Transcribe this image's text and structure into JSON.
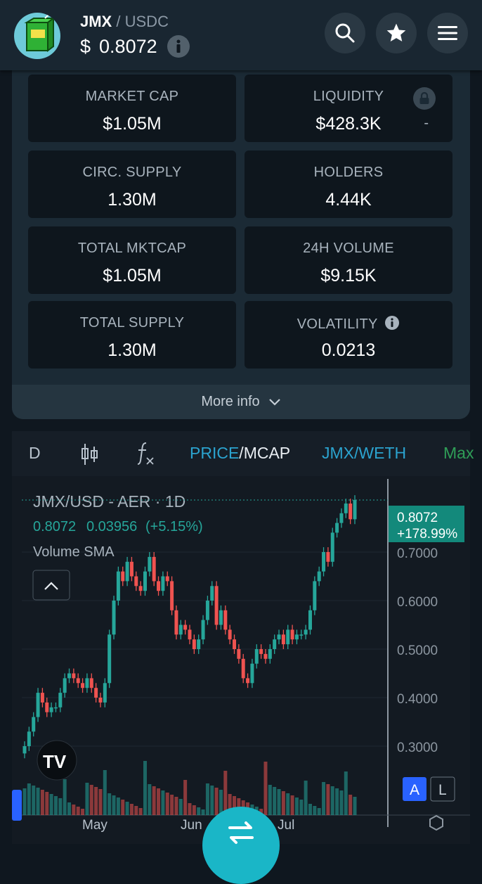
{
  "header": {
    "logo_icon": "juice-box-icon",
    "base": "JMX",
    "separator": "/",
    "quote": "USDC",
    "currency_symbol": "$",
    "price": "0.8072"
  },
  "stats": [
    {
      "label": "MARKET CAP",
      "value": "$1.05M"
    },
    {
      "label": "LIQUIDITY",
      "value": "$428.3K",
      "extra": "-"
    },
    {
      "label": "CIRC. SUPPLY",
      "value": "1.30M"
    },
    {
      "label": "HOLDERS",
      "value": "4.44K"
    },
    {
      "label": "TOTAL MKTCAP",
      "value": "$1.05M"
    },
    {
      "label": "24H VOLUME",
      "value": "$9.15K"
    },
    {
      "label": "TOTAL SUPPLY",
      "value": "1.30M"
    },
    {
      "label": "VOLATILITY",
      "value": "0.0213"
    }
  ],
  "more_info": "More info",
  "toolbar": {
    "interval": "D",
    "price_label": "PRICE",
    "slash": "/",
    "mcap_label": "MCAP",
    "pair_label": "JMX/WETH",
    "max_label": "Max"
  },
  "chart_data": {
    "type": "candlestick",
    "title": "JMX/USD - AER · 1D",
    "ohlc_legend": {
      "price": "0.8072",
      "change": "0.03956",
      "pct": "(+5.15%)"
    },
    "indicator": "Volume SMA",
    "last_price": "0.8072",
    "last_change": "+178.99%",
    "y_ticks": [
      "0.7000",
      "0.6000",
      "0.5000",
      "0.4000",
      "0.3000"
    ],
    "y_values": [
      0.7,
      0.6,
      0.5,
      0.4,
      0.3
    ],
    "x_ticks": [
      "May",
      "Jun",
      "Jul"
    ],
    "scale_buttons": [
      "A",
      "L"
    ],
    "closes": [
      0.3,
      0.33,
      0.36,
      0.41,
      0.39,
      0.37,
      0.38,
      0.38,
      0.41,
      0.44,
      0.45,
      0.44,
      0.43,
      0.42,
      0.44,
      0.42,
      0.4,
      0.39,
      0.43,
      0.53,
      0.6,
      0.66,
      0.64,
      0.68,
      0.65,
      0.63,
      0.62,
      0.66,
      0.69,
      0.64,
      0.62,
      0.65,
      0.64,
      0.58,
      0.53,
      0.55,
      0.54,
      0.52,
      0.5,
      0.52,
      0.56,
      0.6,
      0.63,
      0.55,
      0.58,
      0.54,
      0.52,
      0.5,
      0.48,
      0.44,
      0.43,
      0.47,
      0.5,
      0.49,
      0.48,
      0.5,
      0.52,
      0.53,
      0.51,
      0.54,
      0.52,
      0.53,
      0.53,
      0.54,
      0.58,
      0.64,
      0.66,
      0.7,
      0.68,
      0.74,
      0.76,
      0.78,
      0.8,
      0.7676,
      0.8072
    ]
  }
}
